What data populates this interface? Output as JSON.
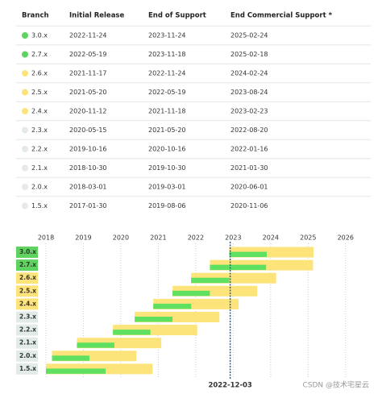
{
  "table": {
    "header": [
      "Branch",
      "Initial Release",
      "End of Support",
      "End Commercial Support *"
    ],
    "rows": [
      {
        "branch": "3.0.x",
        "initial": "2022-11-24",
        "support": "2023-11-24",
        "commercial": "2025-02-24",
        "color": "#5fd35f"
      },
      {
        "branch": "2.7.x",
        "initial": "2022-05-19",
        "support": "2023-11-18",
        "commercial": "2025-02-18",
        "color": "#5fd35f"
      },
      {
        "branch": "2.6.x",
        "initial": "2021-11-17",
        "support": "2022-11-24",
        "commercial": "2024-02-24",
        "color": "#fde47a"
      },
      {
        "branch": "2.5.x",
        "initial": "2021-05-20",
        "support": "2022-05-19",
        "commercial": "2023-08-24",
        "color": "#fde47a"
      },
      {
        "branch": "2.4.x",
        "initial": "2020-11-12",
        "support": "2021-11-18",
        "commercial": "2023-02-23",
        "color": "#fde47a"
      },
      {
        "branch": "2.3.x",
        "initial": "2020-05-15",
        "support": "2021-05-20",
        "commercial": "2022-08-20",
        "color": "#e3ebe8"
      },
      {
        "branch": "2.2.x",
        "initial": "2019-10-16",
        "support": "2020-10-16",
        "commercial": "2022-01-16",
        "color": "#e3ebe8"
      },
      {
        "branch": "2.1.x",
        "initial": "2018-10-30",
        "support": "2019-10-30",
        "commercial": "2021-01-30",
        "color": "#e3ebe8"
      },
      {
        "branch": "2.0.x",
        "initial": "2018-03-01",
        "support": "2019-03-01",
        "commercial": "2020-06-01",
        "color": "#e3ebe8"
      },
      {
        "branch": "1.5.x",
        "initial": "2017-01-30",
        "support": "2019-08-06",
        "commercial": "2020-11-06",
        "color": "#e3ebe8"
      }
    ]
  },
  "timeline": {
    "xlim": [
      2018,
      2026.5
    ],
    "xticks": [
      2018,
      2019,
      2020,
      2021,
      2022,
      2023,
      2024,
      2025,
      2026
    ],
    "today": "2022-12-03",
    "support_color": "#5fe060",
    "commercial_color": "#fde47a",
    "today_color": "#1f5fa8"
  },
  "watermark": "CSDN @技术宅星云"
}
